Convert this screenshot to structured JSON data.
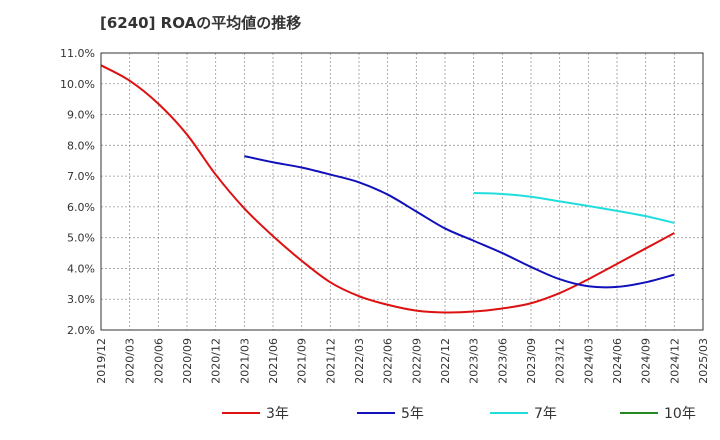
{
  "chart_data": {
    "type": "line",
    "title": "[6240]  ROAの平均値の推移",
    "xlabel": "",
    "ylabel": "",
    "x": [
      "2019/12",
      "2020/03",
      "2020/06",
      "2020/09",
      "2020/12",
      "2021/03",
      "2021/06",
      "2021/09",
      "2021/12",
      "2022/03",
      "2022/06",
      "2022/09",
      "2022/12",
      "2023/03",
      "2023/06",
      "2023/09",
      "2023/12",
      "2024/03",
      "2024/06",
      "2024/09",
      "2024/12",
      "2025/03"
    ],
    "ylim": [
      2.0,
      11.0
    ],
    "yticks": [
      "2.0%",
      "3.0%",
      "4.0%",
      "5.0%",
      "6.0%",
      "7.0%",
      "8.0%",
      "9.0%",
      "10.0%",
      "11.0%"
    ],
    "grid": true,
    "legend_position": "bottom",
    "series": [
      {
        "name": "3年",
        "color": "#dd1111",
        "values": [
          10.6,
          10.1,
          9.35,
          8.35,
          7.05,
          5.95,
          5.05,
          4.25,
          3.55,
          3.1,
          2.82,
          2.63,
          2.57,
          2.6,
          2.7,
          2.87,
          3.2,
          3.65,
          4.15,
          4.65,
          5.15,
          null
        ]
      },
      {
        "name": "5年",
        "color": "#1111bb",
        "values": [
          null,
          null,
          null,
          null,
          null,
          7.65,
          7.45,
          7.28,
          7.05,
          6.8,
          6.4,
          5.85,
          5.3,
          4.9,
          4.5,
          4.05,
          3.65,
          3.42,
          3.4,
          3.55,
          3.8,
          null
        ]
      },
      {
        "name": "7年",
        "color": "#22dddd",
        "values": [
          null,
          null,
          null,
          null,
          null,
          null,
          null,
          null,
          null,
          null,
          null,
          null,
          null,
          6.45,
          6.42,
          6.33,
          6.18,
          6.03,
          5.87,
          5.7,
          5.48,
          null
        ]
      },
      {
        "name": "10年",
        "color": "#228822",
        "values": [
          null,
          null,
          null,
          null,
          null,
          null,
          null,
          null,
          null,
          null,
          null,
          null,
          null,
          null,
          null,
          null,
          null,
          null,
          null,
          null,
          null,
          null
        ]
      }
    ]
  }
}
